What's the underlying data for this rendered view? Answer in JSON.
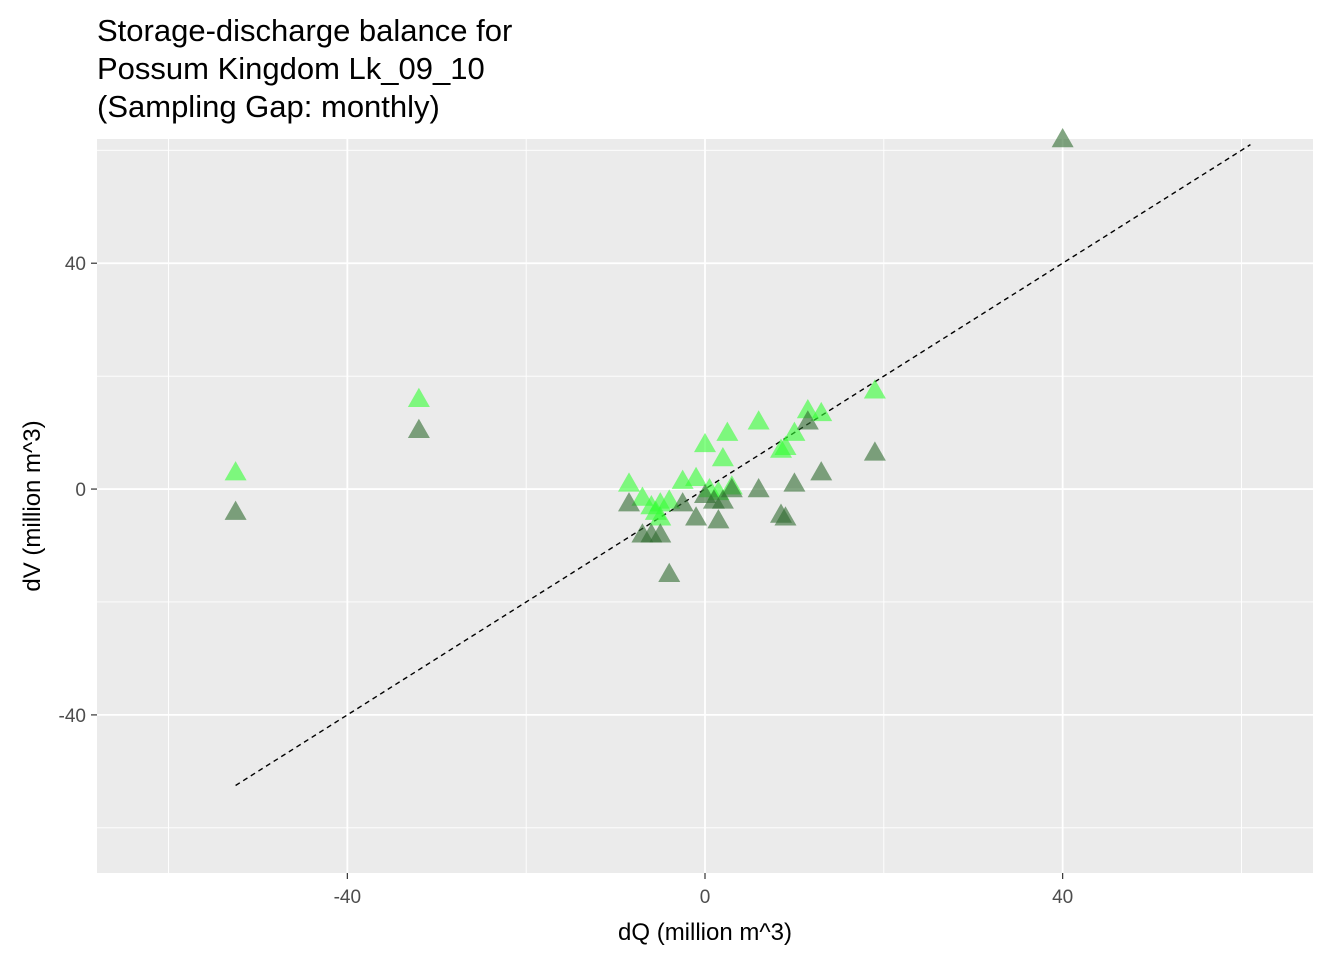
{
  "chart_data": {
    "type": "scatter",
    "title_lines": [
      "Storage-discharge balance for",
      "Possum Kingdom Lk_09_10",
      "(Sampling Gap: monthly)"
    ],
    "xlabel": "dQ (million m^3)",
    "ylabel": "dV (million m^3)",
    "xlim": [
      -68,
      68
    ],
    "ylim": [
      -68,
      62
    ],
    "xticks": [
      -40,
      0,
      40
    ],
    "yticks": [
      -40,
      0,
      40
    ],
    "grid": true,
    "legend": "none",
    "reference_line": {
      "style": "dashed",
      "color": "#000000",
      "from": [
        -52.5,
        -52.5
      ],
      "to": [
        61,
        61
      ]
    },
    "colors": {
      "panel": "#EBEBEB",
      "gridline": "#FFFFFF",
      "light_series": "#33FF33",
      "dark_series": "#2E6B2E"
    },
    "series": [
      {
        "marker": "triangle",
        "color": "#33FF33",
        "points": [
          [
            -52.5,
            3
          ],
          [
            -32,
            16
          ],
          [
            -8.5,
            1
          ],
          [
            -7,
            -1.5
          ],
          [
            -6,
            -3
          ],
          [
            -5.5,
            -4
          ],
          [
            -5,
            -5
          ],
          [
            -5,
            -2.5
          ],
          [
            -4,
            -2
          ],
          [
            -2.5,
            1.5
          ],
          [
            -1,
            2
          ],
          [
            0,
            8
          ],
          [
            0.5,
            0
          ],
          [
            1.5,
            -0.5
          ],
          [
            2,
            5.5
          ],
          [
            2.5,
            10
          ],
          [
            3,
            0.5
          ],
          [
            6,
            12
          ],
          [
            8.5,
            7
          ],
          [
            9,
            7.5
          ],
          [
            10,
            10
          ],
          [
            11.5,
            14
          ],
          [
            13,
            13.5
          ],
          [
            19,
            17.5
          ]
        ]
      },
      {
        "marker": "triangle",
        "color": "#2E6B2E",
        "points": [
          [
            -52.5,
            -4
          ],
          [
            -32,
            10.5
          ],
          [
            -8.5,
            -2.5
          ],
          [
            -7,
            -8
          ],
          [
            -6,
            -8
          ],
          [
            -5,
            -8
          ],
          [
            -4,
            -15
          ],
          [
            -2.5,
            -2.5
          ],
          [
            -1,
            -5
          ],
          [
            0,
            -1
          ],
          [
            1,
            -2
          ],
          [
            1.5,
            -5.5
          ],
          [
            2,
            -2
          ],
          [
            3,
            0
          ],
          [
            6,
            0
          ],
          [
            8.5,
            -4.5
          ],
          [
            9,
            -5
          ],
          [
            10,
            1
          ],
          [
            11.5,
            12
          ],
          [
            13,
            3
          ],
          [
            19,
            6.5
          ],
          [
            40,
            62
          ]
        ]
      }
    ]
  }
}
